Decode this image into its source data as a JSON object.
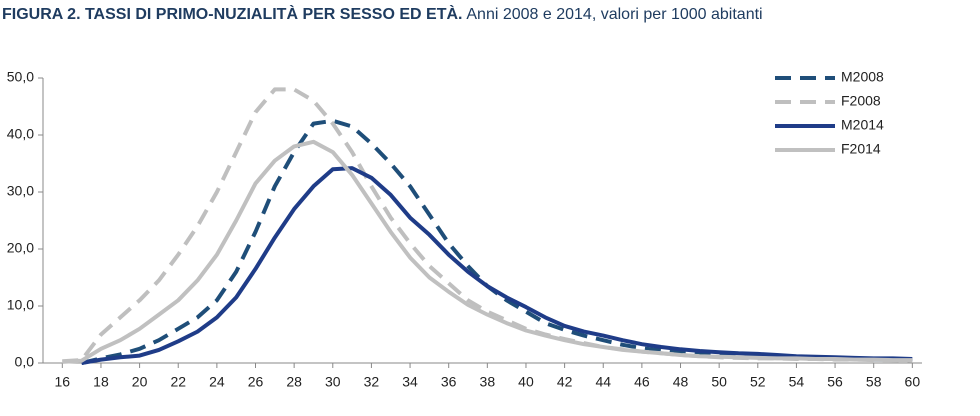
{
  "chart_data": {
    "type": "line",
    "title": "FIGURA 2. TASSI DI PRIMO-NUZIALITÀ PER SESSO ED ETÀ.",
    "subtitle": "Anni 2008 e 2014, valori per 1000 abitanti",
    "x": [
      16,
      17,
      18,
      19,
      20,
      21,
      22,
      23,
      24,
      25,
      26,
      27,
      28,
      29,
      30,
      31,
      32,
      33,
      34,
      35,
      36,
      37,
      38,
      39,
      40,
      41,
      42,
      43,
      44,
      45,
      46,
      47,
      48,
      49,
      50,
      51,
      52,
      53,
      54,
      55,
      56,
      57,
      58,
      59,
      60
    ],
    "xlim": [
      15,
      60.5
    ],
    "xticks": [
      16,
      18,
      20,
      22,
      24,
      26,
      28,
      30,
      32,
      34,
      36,
      38,
      40,
      42,
      44,
      46,
      48,
      50,
      52,
      54,
      56,
      58,
      60
    ],
    "ylim": [
      0,
      50
    ],
    "yticks": [
      {
        "value": 0,
        "label": "0,0"
      },
      {
        "value": 10,
        "label": "10,0"
      },
      {
        "value": 20,
        "label": "20,0"
      },
      {
        "value": 30,
        "label": "30,0"
      },
      {
        "value": 40,
        "label": "40,0"
      },
      {
        "value": 50,
        "label": "50,0"
      }
    ],
    "legend": "top-right",
    "grid": false,
    "series": [
      {
        "name": "M2008",
        "color": "#1f4e79",
        "dashed": true,
        "values": [
          null,
          0,
          0.8,
          1.5,
          2.5,
          4,
          6,
          8,
          11,
          16,
          23,
          31,
          37,
          42,
          42.5,
          41.5,
          38.5,
          35,
          31,
          26,
          21,
          17,
          13.5,
          11,
          9,
          7,
          5.8,
          4.8,
          4,
          3.2,
          2.6,
          2.2,
          1.8,
          1.5,
          1.3,
          1.2,
          1.1,
          1,
          0.9,
          0.8,
          0.7,
          0.7,
          0.6,
          0.6,
          0.5
        ]
      },
      {
        "name": "F2008",
        "color": "#bfbfbf",
        "dashed": true,
        "values": [
          0.3,
          0.5,
          5,
          8,
          11,
          14.5,
          19,
          24,
          30,
          37,
          44,
          48,
          48,
          46,
          42,
          37,
          31,
          25.5,
          21,
          17,
          14,
          11,
          9,
          7.5,
          6,
          5,
          4.2,
          3.5,
          2.8,
          2.4,
          2,
          1.7,
          1.4,
          1.2,
          1,
          0.9,
          0.8,
          0.8,
          0.7,
          0.7,
          0.6,
          0.6,
          0.5,
          0.5,
          0.4
        ]
      },
      {
        "name": "M2014",
        "color": "#1f3c88",
        "dashed": false,
        "values": [
          null,
          0,
          0.6,
          1,
          1.3,
          2.3,
          3.8,
          5.5,
          8,
          11.5,
          16.5,
          22,
          27,
          31,
          34,
          34.2,
          32.5,
          29.5,
          25.5,
          22.5,
          19,
          16,
          13.5,
          11.5,
          9.8,
          8,
          6.5,
          5.5,
          4.8,
          4,
          3.3,
          2.8,
          2.4,
          2.1,
          1.9,
          1.7,
          1.6,
          1.4,
          1.2,
          1.1,
          1,
          0.9,
          0.8,
          0.8,
          0.7
        ]
      },
      {
        "name": "F2014",
        "color": "#c0c0c0",
        "dashed": false,
        "values": [
          0.2,
          0.4,
          2.5,
          4,
          6,
          8.5,
          11,
          14.5,
          19,
          25,
          31.5,
          35.5,
          38,
          38.8,
          37,
          33,
          28,
          23,
          18.5,
          15,
          12.5,
          10.2,
          8.5,
          7,
          5.7,
          4.8,
          4,
          3.3,
          2.8,
          2.3,
          2,
          1.7,
          1.4,
          1.2,
          1.1,
          1,
          0.9,
          0.8,
          0.8,
          0.7,
          0.7,
          0.6,
          0.6,
          0.5,
          0.5
        ]
      }
    ]
  }
}
